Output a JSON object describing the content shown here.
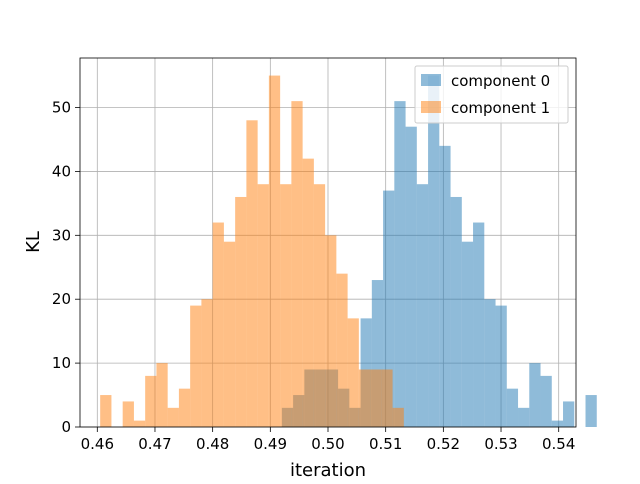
{
  "chart_data": {
    "type": "histogram",
    "title": "",
    "xlabel": "iteration",
    "ylabel": "KL",
    "xlim": [
      0.457,
      0.543
    ],
    "ylim": [
      0,
      57.75
    ],
    "xticks": [
      "0.46",
      "0.47",
      "0.48",
      "0.49",
      "0.50",
      "0.51",
      "0.52",
      "0.53",
      "0.54"
    ],
    "xtick_values": [
      0.46,
      0.47,
      0.48,
      0.49,
      0.5,
      0.51,
      0.52,
      0.53,
      0.54
    ],
    "yticks": [
      "0",
      "10",
      "20",
      "30",
      "40",
      "50"
    ],
    "ytick_values": [
      0,
      10,
      20,
      30,
      40,
      50
    ],
    "grid": true,
    "legend_position": "upper right",
    "bin_width": 0.00195,
    "series": [
      {
        "name": "component 0",
        "color": "#1f77b4",
        "alpha": 0.5,
        "bin_start": 0.492,
        "counts": [
          3,
          5,
          9,
          9,
          9,
          6,
          3,
          17,
          23,
          37,
          51,
          47,
          38,
          55,
          44,
          36,
          29,
          32,
          20,
          19,
          6,
          3,
          10,
          8,
          1,
          4,
          0,
          5
        ]
      },
      {
        "name": "component 1",
        "color": "#ff7f0e",
        "alpha": 0.5,
        "bin_start": 0.4605,
        "counts": [
          5,
          0,
          4,
          1,
          8,
          10,
          3,
          6,
          19,
          20,
          32,
          29,
          36,
          48,
          38,
          55,
          38,
          51,
          42,
          38,
          30,
          24,
          17,
          9,
          9,
          9,
          3
        ]
      }
    ]
  }
}
